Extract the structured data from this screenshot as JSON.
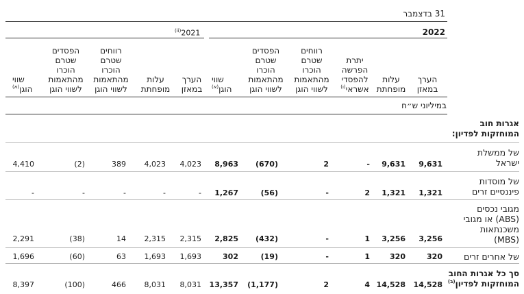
{
  "header": {
    "date_label": "31 בדצמבר",
    "year_current": "2022",
    "year_prior": "2021",
    "year_prior_note": "(ii)",
    "unit_label": "במיליוני ש״ח"
  },
  "columns_2022": [
    {
      "lines": [
        "הערך",
        "במאזן"
      ]
    },
    {
      "lines": [
        "עלות",
        "מופחתת"
      ]
    },
    {
      "lines": [
        "יתרת",
        "הפרשה",
        "להפסדי",
        "אשראי"
      ],
      "note": "(ו)"
    },
    {
      "lines": [
        "רווחים",
        "שטרם",
        "הוכרו",
        "מהתאמות",
        "לשווי הוגן"
      ]
    },
    {
      "lines": [
        "הפסדים",
        "שטרם",
        "הוכרו",
        "מהתאמות",
        "לשווי הוגן"
      ]
    },
    {
      "lines": [
        "שווי",
        "הוגן"
      ],
      "note": "(א)"
    }
  ],
  "columns_2021": [
    {
      "lines": [
        "הערך",
        "במאזן"
      ]
    },
    {
      "lines": [
        "עלות",
        "מופחתת"
      ]
    },
    {
      "lines": [
        "רווחים",
        "שטרם",
        "הוכרו",
        "מהתאמות",
        "לשווי הוגן"
      ]
    },
    {
      "lines": [
        "הפסדים",
        "שטרם",
        "הוכרו",
        "מהתאמות",
        "לשווי הוגן"
      ]
    },
    {
      "lines": [
        "שווי",
        "הוגן"
      ],
      "note": "(א)"
    }
  ],
  "section_title": [
    "אגרות חוב",
    "המוחזקות לפדיון:"
  ],
  "rows": [
    {
      "label": [
        "של ממשלת",
        "ישראל"
      ],
      "values_2022": [
        "9,631",
        "9,631",
        "-",
        "2",
        "(670)",
        "8,963"
      ],
      "values_2021": [
        "4,023",
        "4,023",
        "389",
        "(2)",
        "4,410"
      ]
    },
    {
      "label": [
        "של מוסדות",
        "פיננסיים זרים"
      ],
      "values_2022": [
        "1,321",
        "1,321",
        "2",
        "-",
        "(56)",
        "1,267"
      ],
      "values_2021": [
        "-",
        "-",
        "-",
        "-",
        "-"
      ]
    },
    {
      "label": [
        "מגובי נכסים",
        "(ABS) או מגובי",
        "משכנתאות",
        "(MBS)"
      ],
      "values_2022": [
        "3,256",
        "3,256",
        "1",
        "-",
        "(432)",
        "2,825"
      ],
      "values_2021": [
        "2,315",
        "2,315",
        "14",
        "(38)",
        "2,291"
      ]
    },
    {
      "label": [
        "של אחרים זרים"
      ],
      "values_2022": [
        "320",
        "320",
        "1",
        "-",
        "(19)",
        "302"
      ],
      "values_2021": [
        "1,693",
        "1,693",
        "63",
        "(60)",
        "1,696"
      ]
    },
    {
      "label": [
        "סך כל אגרות החוב",
        "המוחזקות לפדיון"
      ],
      "label_note": "(ב)",
      "values_2022": [
        "14,528",
        "14,528",
        "4",
        "2",
        "(1,177)",
        "13,357"
      ],
      "values_2021": [
        "8,031",
        "8,031",
        "466",
        "(100)",
        "8,397"
      ]
    }
  ]
}
